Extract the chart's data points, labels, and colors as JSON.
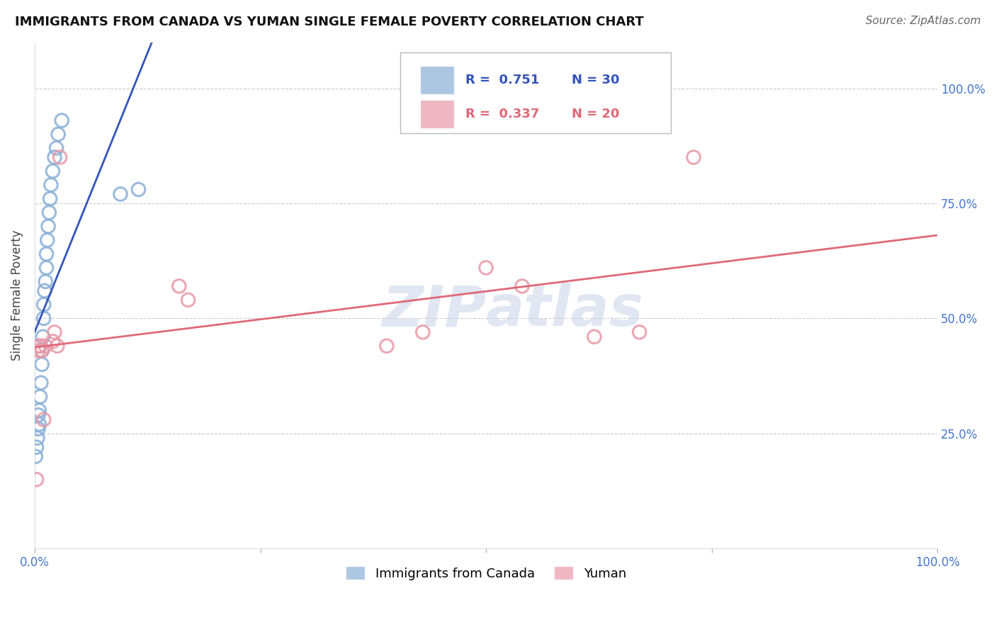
{
  "title": "IMMIGRANTS FROM CANADA VS YUMAN SINGLE FEMALE POVERTY CORRELATION CHART",
  "source": "Source: ZipAtlas.com",
  "ylabel": "Single Female Poverty",
  "legend_label_blue": "Immigrants from Canada",
  "legend_label_pink": "Yuman",
  "r_blue": "0.751",
  "n_blue": "30",
  "r_pink": "0.337",
  "n_pink": "20",
  "blue_color": "#8ab0d8",
  "pink_color": "#e899a8",
  "blue_line_color": "#3355bb",
  "pink_line_color": "#e06878",
  "blue_x": [
    0.001,
    0.002,
    0.003,
    0.004,
    0.004,
    0.005,
    0.005,
    0.006,
    0.007,
    0.008,
    0.008,
    0.009,
    0.01,
    0.01,
    0.011,
    0.012,
    0.013,
    0.013,
    0.014,
    0.015,
    0.016,
    0.017,
    0.018,
    0.02,
    0.022,
    0.024,
    0.026,
    0.03,
    0.095,
    0.115
  ],
  "blue_y": [
    0.2,
    0.22,
    0.24,
    0.26,
    0.29,
    0.27,
    0.3,
    0.33,
    0.36,
    0.4,
    0.43,
    0.46,
    0.5,
    0.53,
    0.56,
    0.58,
    0.61,
    0.64,
    0.67,
    0.7,
    0.73,
    0.76,
    0.79,
    0.82,
    0.85,
    0.87,
    0.9,
    0.93,
    0.77,
    0.78
  ],
  "pink_x": [
    0.002,
    0.004,
    0.005,
    0.006,
    0.008,
    0.01,
    0.012,
    0.02,
    0.022,
    0.025,
    0.028,
    0.16,
    0.17,
    0.39,
    0.43,
    0.5,
    0.54,
    0.62,
    0.67,
    0.73
  ],
  "pink_y": [
    0.15,
    0.43,
    0.44,
    0.44,
    0.43,
    0.28,
    0.44,
    0.45,
    0.47,
    0.44,
    0.85,
    0.57,
    0.54,
    0.44,
    0.47,
    0.61,
    0.57,
    0.46,
    0.47,
    0.85
  ],
  "watermark_line1": "ZIP",
  "watermark_line2": "atlas",
  "xlim": [
    0.0,
    1.0
  ],
  "ylim": [
    0.0,
    1.1
  ],
  "grid_yticks": [
    0.25,
    0.5,
    0.75,
    1.0
  ],
  "grid_color": "#cccccc",
  "background_color": "#ffffff",
  "tick_color": "#4477cc",
  "title_fontsize": 13,
  "axis_fontsize": 12,
  "source_fontsize": 11
}
